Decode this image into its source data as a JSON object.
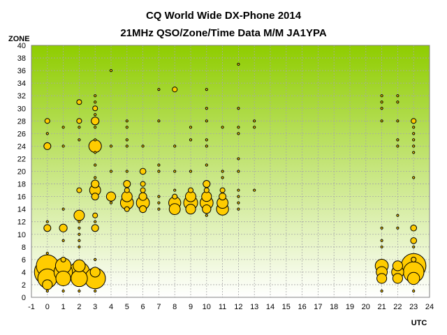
{
  "chart_data": {
    "type": "scatter",
    "title": "CQ World Wide DX-Phone 2014",
    "subtitle": "21MHz QSO/Zone/Time Data M/M JA1YPA",
    "xlabel": "UTC",
    "ylabel": "ZONE",
    "xlim": [
      -1,
      24
    ],
    "ylim": [
      0,
      40
    ],
    "x_ticks": [
      -1,
      0,
      1,
      2,
      3,
      4,
      5,
      6,
      7,
      8,
      9,
      10,
      11,
      12,
      13,
      14,
      15,
      16,
      17,
      18,
      19,
      20,
      21,
      22,
      23,
      24
    ],
    "y_ticks": [
      0,
      2,
      4,
      6,
      8,
      10,
      12,
      14,
      16,
      18,
      20,
      22,
      24,
      26,
      28,
      30,
      32,
      34,
      36,
      38,
      40
    ],
    "grid": true,
    "background_gradient": [
      "#8fcd00",
      "#ffffff"
    ],
    "marker_color": "#ffcc00",
    "note": "size = relative QSO count (bubble radius proportional to sqrt(size))",
    "points": [
      {
        "x": 0,
        "y": 1,
        "size": 1
      },
      {
        "x": 0,
        "y": 2,
        "size": 8
      },
      {
        "x": 0,
        "y": 3,
        "size": 30
      },
      {
        "x": 0,
        "y": 4,
        "size": 55
      },
      {
        "x": 0,
        "y": 5,
        "size": 40
      },
      {
        "x": 0,
        "y": 7,
        "size": 1
      },
      {
        "x": 0,
        "y": 11,
        "size": 4
      },
      {
        "x": 0,
        "y": 12,
        "size": 1
      },
      {
        "x": 0,
        "y": 24,
        "size": 4
      },
      {
        "x": 0,
        "y": 26,
        "size": 1
      },
      {
        "x": 0,
        "y": 28,
        "size": 2
      },
      {
        "x": 1,
        "y": 1,
        "size": 1
      },
      {
        "x": 1,
        "y": 3,
        "size": 18
      },
      {
        "x": 1,
        "y": 4,
        "size": 28
      },
      {
        "x": 1,
        "y": 5,
        "size": 20
      },
      {
        "x": 1,
        "y": 6,
        "size": 2
      },
      {
        "x": 1,
        "y": 9,
        "size": 1
      },
      {
        "x": 1,
        "y": 11,
        "size": 5
      },
      {
        "x": 1,
        "y": 14,
        "size": 1
      },
      {
        "x": 1,
        "y": 24,
        "size": 1
      },
      {
        "x": 1,
        "y": 27,
        "size": 1
      },
      {
        "x": 2,
        "y": 1,
        "size": 1
      },
      {
        "x": 2,
        "y": 3,
        "size": 22
      },
      {
        "x": 2,
        "y": 4,
        "size": 35
      },
      {
        "x": 2,
        "y": 5,
        "size": 12
      },
      {
        "x": 2,
        "y": 8,
        "size": 1
      },
      {
        "x": 2,
        "y": 9,
        "size": 1
      },
      {
        "x": 2,
        "y": 10,
        "size": 1
      },
      {
        "x": 2,
        "y": 11,
        "size": 1
      },
      {
        "x": 2,
        "y": 12,
        "size": 1
      },
      {
        "x": 2,
        "y": 13,
        "size": 9
      },
      {
        "x": 2,
        "y": 17,
        "size": 2
      },
      {
        "x": 2,
        "y": 25,
        "size": 1
      },
      {
        "x": 2,
        "y": 27,
        "size": 1
      },
      {
        "x": 2,
        "y": 28,
        "size": 2
      },
      {
        "x": 2,
        "y": 31,
        "size": 2
      },
      {
        "x": 3,
        "y": 1,
        "size": 1
      },
      {
        "x": 3,
        "y": 3,
        "size": 35
      },
      {
        "x": 3,
        "y": 4,
        "size": 8
      },
      {
        "x": 3,
        "y": 6,
        "size": 1
      },
      {
        "x": 3,
        "y": 11,
        "size": 4
      },
      {
        "x": 3,
        "y": 12,
        "size": 1
      },
      {
        "x": 3,
        "y": 13,
        "size": 2
      },
      {
        "x": 3,
        "y": 16,
        "size": 4
      },
      {
        "x": 3,
        "y": 17,
        "size": 10
      },
      {
        "x": 3,
        "y": 18,
        "size": 5
      },
      {
        "x": 3,
        "y": 19,
        "size": 1
      },
      {
        "x": 3,
        "y": 21,
        "size": 1
      },
      {
        "x": 3,
        "y": 23,
        "size": 1
      },
      {
        "x": 3,
        "y": 24,
        "size": 13
      },
      {
        "x": 3,
        "y": 25,
        "size": 1
      },
      {
        "x": 3,
        "y": 27,
        "size": 1
      },
      {
        "x": 3,
        "y": 28,
        "size": 5
      },
      {
        "x": 3,
        "y": 29,
        "size": 1
      },
      {
        "x": 3,
        "y": 30,
        "size": 2
      },
      {
        "x": 3,
        "y": 31,
        "size": 1
      },
      {
        "x": 3,
        "y": 32,
        "size": 1
      },
      {
        "x": 4,
        "y": 15,
        "size": 1
      },
      {
        "x": 4,
        "y": 16,
        "size": 7
      },
      {
        "x": 4,
        "y": 20,
        "size": 1
      },
      {
        "x": 4,
        "y": 24,
        "size": 1
      },
      {
        "x": 4,
        "y": 36,
        "size": 1
      },
      {
        "x": 5,
        "y": 14,
        "size": 2
      },
      {
        "x": 5,
        "y": 15,
        "size": 14
      },
      {
        "x": 5,
        "y": 16,
        "size": 9
      },
      {
        "x": 5,
        "y": 17,
        "size": 2
      },
      {
        "x": 5,
        "y": 18,
        "size": 4
      },
      {
        "x": 5,
        "y": 20,
        "size": 1
      },
      {
        "x": 5,
        "y": 24,
        "size": 1
      },
      {
        "x": 5,
        "y": 25,
        "size": 1
      },
      {
        "x": 5,
        "y": 27,
        "size": 1
      },
      {
        "x": 5,
        "y": 28,
        "size": 1
      },
      {
        "x": 6,
        "y": 14,
        "size": 4
      },
      {
        "x": 6,
        "y": 15,
        "size": 14
      },
      {
        "x": 6,
        "y": 16,
        "size": 5
      },
      {
        "x": 6,
        "y": 17,
        "size": 2
      },
      {
        "x": 6,
        "y": 18,
        "size": 2
      },
      {
        "x": 6,
        "y": 20,
        "size": 3
      },
      {
        "x": 6,
        "y": 24,
        "size": 1
      },
      {
        "x": 7,
        "y": 14,
        "size": 1
      },
      {
        "x": 7,
        "y": 15,
        "size": 1
      },
      {
        "x": 7,
        "y": 16,
        "size": 1
      },
      {
        "x": 7,
        "y": 20,
        "size": 1
      },
      {
        "x": 7,
        "y": 21,
        "size": 1
      },
      {
        "x": 7,
        "y": 28,
        "size": 1
      },
      {
        "x": 7,
        "y": 33,
        "size": 1
      },
      {
        "x": 8,
        "y": 14,
        "size": 10
      },
      {
        "x": 8,
        "y": 15,
        "size": 12
      },
      {
        "x": 8,
        "y": 16,
        "size": 2
      },
      {
        "x": 8,
        "y": 17,
        "size": 1
      },
      {
        "x": 8,
        "y": 20,
        "size": 1
      },
      {
        "x": 8,
        "y": 24,
        "size": 1
      },
      {
        "x": 8,
        "y": 33,
        "size": 2
      },
      {
        "x": 9,
        "y": 14,
        "size": 8
      },
      {
        "x": 9,
        "y": 15,
        "size": 16
      },
      {
        "x": 9,
        "y": 16,
        "size": 9
      },
      {
        "x": 9,
        "y": 17,
        "size": 2
      },
      {
        "x": 9,
        "y": 20,
        "size": 1
      },
      {
        "x": 9,
        "y": 25,
        "size": 1
      },
      {
        "x": 9,
        "y": 27,
        "size": 1
      },
      {
        "x": 10,
        "y": 13,
        "size": 1
      },
      {
        "x": 10,
        "y": 14,
        "size": 6
      },
      {
        "x": 10,
        "y": 15,
        "size": 14
      },
      {
        "x": 10,
        "y": 16,
        "size": 8
      },
      {
        "x": 10,
        "y": 17,
        "size": 2
      },
      {
        "x": 10,
        "y": 18,
        "size": 4
      },
      {
        "x": 10,
        "y": 21,
        "size": 1
      },
      {
        "x": 10,
        "y": 24,
        "size": 1
      },
      {
        "x": 10,
        "y": 25,
        "size": 1
      },
      {
        "x": 10,
        "y": 28,
        "size": 1
      },
      {
        "x": 10,
        "y": 30,
        "size": 1
      },
      {
        "x": 10,
        "y": 33,
        "size": 1
      },
      {
        "x": 11,
        "y": 14,
        "size": 12
      },
      {
        "x": 11,
        "y": 15,
        "size": 10
      },
      {
        "x": 11,
        "y": 16,
        "size": 4
      },
      {
        "x": 11,
        "y": 17,
        "size": 2
      },
      {
        "x": 11,
        "y": 19,
        "size": 1
      },
      {
        "x": 11,
        "y": 20,
        "size": 1
      },
      {
        "x": 11,
        "y": 27,
        "size": 1
      },
      {
        "x": 12,
        "y": 14,
        "size": 1
      },
      {
        "x": 12,
        "y": 15,
        "size": 1
      },
      {
        "x": 12,
        "y": 16,
        "size": 1
      },
      {
        "x": 12,
        "y": 17,
        "size": 1
      },
      {
        "x": 12,
        "y": 20,
        "size": 1
      },
      {
        "x": 12,
        "y": 22,
        "size": 1
      },
      {
        "x": 12,
        "y": 26,
        "size": 1
      },
      {
        "x": 12,
        "y": 27,
        "size": 1
      },
      {
        "x": 12,
        "y": 30,
        "size": 1
      },
      {
        "x": 12,
        "y": 37,
        "size": 1
      },
      {
        "x": 13,
        "y": 17,
        "size": 1
      },
      {
        "x": 13,
        "y": 27,
        "size": 1
      },
      {
        "x": 13,
        "y": 28,
        "size": 1
      },
      {
        "x": 21,
        "y": 1,
        "size": 1
      },
      {
        "x": 21,
        "y": 3,
        "size": 8
      },
      {
        "x": 21,
        "y": 4,
        "size": 10
      },
      {
        "x": 21,
        "y": 5,
        "size": 14
      },
      {
        "x": 21,
        "y": 8,
        "size": 1
      },
      {
        "x": 21,
        "y": 9,
        "size": 1
      },
      {
        "x": 21,
        "y": 11,
        "size": 1
      },
      {
        "x": 21,
        "y": 28,
        "size": 1
      },
      {
        "x": 21,
        "y": 30,
        "size": 1
      },
      {
        "x": 21,
        "y": 31,
        "size": 1
      },
      {
        "x": 21,
        "y": 32,
        "size": 1
      },
      {
        "x": 22,
        "y": 3,
        "size": 8
      },
      {
        "x": 22,
        "y": 4,
        "size": 12
      },
      {
        "x": 22,
        "y": 5,
        "size": 8
      },
      {
        "x": 22,
        "y": 11,
        "size": 1
      },
      {
        "x": 22,
        "y": 13,
        "size": 1
      },
      {
        "x": 22,
        "y": 24,
        "size": 1
      },
      {
        "x": 22,
        "y": 25,
        "size": 1
      },
      {
        "x": 22,
        "y": 28,
        "size": 1
      },
      {
        "x": 22,
        "y": 31,
        "size": 1
      },
      {
        "x": 22,
        "y": 32,
        "size": 1
      },
      {
        "x": 23,
        "y": 1,
        "size": 1
      },
      {
        "x": 23,
        "y": 3,
        "size": 12
      },
      {
        "x": 23,
        "y": 4,
        "size": 35
      },
      {
        "x": 23,
        "y": 5,
        "size": 50
      },
      {
        "x": 23,
        "y": 6,
        "size": 2
      },
      {
        "x": 23,
        "y": 8,
        "size": 1
      },
      {
        "x": 23,
        "y": 9,
        "size": 3
      },
      {
        "x": 23,
        "y": 11,
        "size": 3
      },
      {
        "x": 23,
        "y": 19,
        "size": 1
      },
      {
        "x": 23,
        "y": 23,
        "size": 1
      },
      {
        "x": 23,
        "y": 24,
        "size": 1
      },
      {
        "x": 23,
        "y": 25,
        "size": 1
      },
      {
        "x": 23,
        "y": 26,
        "size": 1
      },
      {
        "x": 23,
        "y": 27,
        "size": 1
      },
      {
        "x": 23,
        "y": 28,
        "size": 2
      }
    ]
  }
}
